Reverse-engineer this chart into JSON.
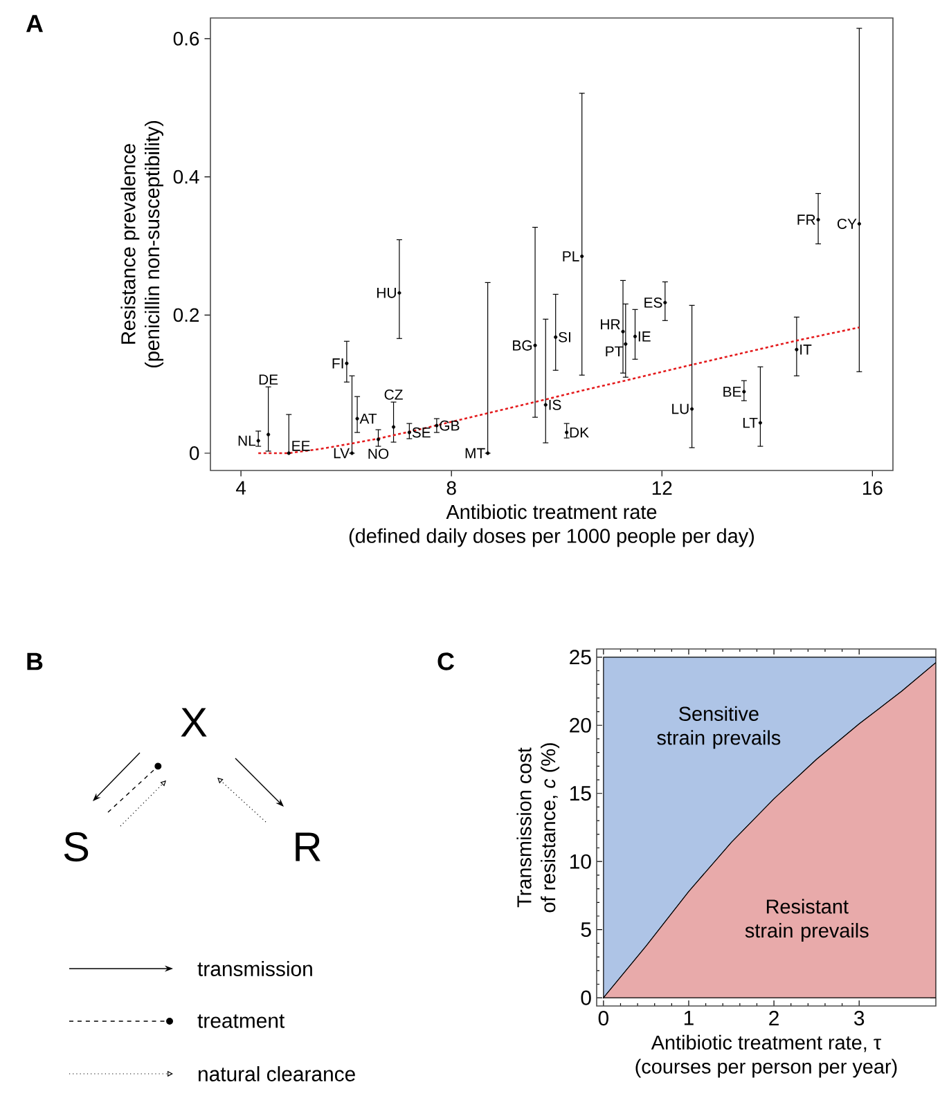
{
  "chart_data": [
    {
      "type": "scatter",
      "title": "A",
      "xlabel": "Antibiotic treatment rate\n(defined daily doses per 1000 people per day)",
      "ylabel": "Resistance prevalence\n(penicillin non-susceptibility)",
      "xlim": [
        3.42,
        16.39
      ],
      "ylim": [
        -0.025,
        0.63
      ],
      "xticks": [
        4,
        8,
        12,
        16
      ],
      "yticks": [
        0,
        0.2,
        0.4,
        0.6
      ],
      "series": [
        {
          "type": "scatter",
          "color": "#000000",
          "marker": "circle",
          "x": [
            4.33,
            4.52,
            4.91,
            6.01,
            6.11,
            6.21,
            6.61,
            7.01,
            6.9,
            7.2,
            7.72,
            8.69,
            9.59,
            9.79,
            9.98,
            10.19,
            10.48,
            11.26,
            11.31,
            11.49,
            12.06,
            12.57,
            13.56,
            13.87,
            14.56,
            14.97,
            15.75
          ],
          "values": [
            0.018,
            0.027,
            0,
            0.13,
            0,
            0.05,
            0.02,
            0.232,
            0.038,
            0.03,
            0.04,
            0,
            0.156,
            0.07,
            0.168,
            0.03,
            0.285,
            0.176,
            0.158,
            0.169,
            0.218,
            0.064,
            0.089,
            0.044,
            0.15,
            0.338,
            0.332
          ],
          "errors": [
            [
              0.01,
              0.032
            ],
            [
              0.003,
              0.096
            ],
            [
              0,
              0.056
            ],
            [
              0.103,
              0.162
            ],
            [
              0,
              0.112
            ],
            [
              0.03,
              0.082
            ],
            [
              0.01,
              0.034
            ],
            [
              0.166,
              0.309
            ],
            [
              0.016,
              0.074
            ],
            [
              0.021,
              0.043
            ],
            [
              0.03,
              0.05
            ],
            [
              0,
              0.247
            ],
            [
              0.052,
              0.327
            ],
            [
              0.015,
              0.194
            ],
            [
              0.12,
              0.23
            ],
            [
              0.022,
              0.043
            ],
            [
              0.113,
              0.521
            ],
            [
              0.116,
              0.25
            ],
            [
              0.11,
              0.216
            ],
            [
              0.136,
              0.208
            ],
            [
              0.192,
              0.248
            ],
            [
              0.008,
              0.214
            ],
            [
              0.076,
              0.105
            ],
            [
              0.01,
              0.125
            ],
            [
              0.112,
              0.197
            ],
            [
              0.303,
              0.376
            ],
            [
              0.118,
              0.615
            ]
          ]
        },
        {
          "type": "line",
          "color": "#e41a1c",
          "line_style": "dotted",
          "x": [
            4.33,
            4.9,
            5.5,
            6.1,
            6.6,
            7.2,
            7.7,
            8.7,
            9.8,
            10.5,
            11.3,
            12.57,
            14.56,
            15.75
          ],
          "values": [
            0,
            0,
            0.006,
            0.014,
            0.021,
            0.031,
            0.04,
            0.058,
            0.078,
            0.091,
            0.105,
            0.128,
            0.163,
            0.182
          ]
        }
      ],
      "annotations": [
        {
          "text": "NL",
          "x": 4.33,
          "y": 0.018
        },
        {
          "text": "DE",
          "x": 4.52,
          "y": 0.096
        },
        {
          "text": "EE",
          "x": 4.91,
          "y": 0
        },
        {
          "text": "FI",
          "x": 6.01,
          "y": 0.13
        },
        {
          "text": "LV",
          "x": 6.11,
          "y": 0
        },
        {
          "text": "AT",
          "x": 6.21,
          "y": 0.05
        },
        {
          "text": "NO",
          "x": 6.61,
          "y": 0.01
        },
        {
          "text": "HU",
          "x": 7.01,
          "y": 0.232
        },
        {
          "text": "CZ",
          "x": 6.9,
          "y": 0.074
        },
        {
          "text": "SE",
          "x": 7.2,
          "y": 0.03
        },
        {
          "text": "GB",
          "x": 7.72,
          "y": 0.04
        },
        {
          "text": "MT",
          "x": 8.69,
          "y": 0
        },
        {
          "text": "BG",
          "x": 9.59,
          "y": 0.156
        },
        {
          "text": "IS",
          "x": 9.79,
          "y": 0.07
        },
        {
          "text": "SI",
          "x": 9.98,
          "y": 0.168
        },
        {
          "text": "DK",
          "x": 10.19,
          "y": 0.03
        },
        {
          "text": "PL",
          "x": 10.48,
          "y": 0.285
        },
        {
          "text": "HR",
          "x": 11.26,
          "y": 0.176
        },
        {
          "text": "PT",
          "x": 11.31,
          "y": 0.158
        },
        {
          "text": "IE",
          "x": 11.49,
          "y": 0.169
        },
        {
          "text": "ES",
          "x": 12.06,
          "y": 0.218
        },
        {
          "text": "LU",
          "x": 12.57,
          "y": 0.064
        },
        {
          "text": "BE",
          "x": 13.56,
          "y": 0.089
        },
        {
          "text": "LT",
          "x": 13.87,
          "y": 0.044
        },
        {
          "text": "IT",
          "x": 14.56,
          "y": 0.15
        },
        {
          "text": "FR",
          "x": 14.97,
          "y": 0.338
        },
        {
          "text": "CY",
          "x": 15.75,
          "y": 0.332
        }
      ]
    },
    {
      "type": "other",
      "title": "B",
      "annotations": [
        "X",
        "S",
        "R",
        "transmission",
        "treatment",
        "natural clearance"
      ]
    },
    {
      "type": "area",
      "title": "C",
      "xlabel": "Antibiotic treatment rate, τ\n(courses per person per year)",
      "ylabel": "Transmission cost\nof resistance, *c* (%)",
      "xlim": [
        -0.08,
        3.9
      ],
      "ylim": [
        -0.6,
        25.6
      ],
      "xticks": [
        0,
        1,
        2,
        3
      ],
      "yticks": [
        0,
        5,
        10,
        15,
        20,
        25
      ],
      "stacked": true,
      "x": [
        0,
        0.25,
        0.5,
        1,
        1.5,
        2,
        2.5,
        3,
        3.5,
        3.9
      ],
      "series": [
        {
          "name": "Resistant strain prevails",
          "color": "#e8aaaa",
          "values": [
            0,
            1.9,
            3.8,
            7.8,
            11.4,
            14.6,
            17.5,
            20.1,
            22.5,
            24.6
          ]
        },
        {
          "name": "Sensitive strain prevails",
          "color": "#aec4e6",
          "values": [
            25,
            23.1,
            21.2,
            17.2,
            13.6,
            10.4,
            7.5,
            4.9,
            2.5,
            0.4
          ]
        }
      ]
    }
  ]
}
